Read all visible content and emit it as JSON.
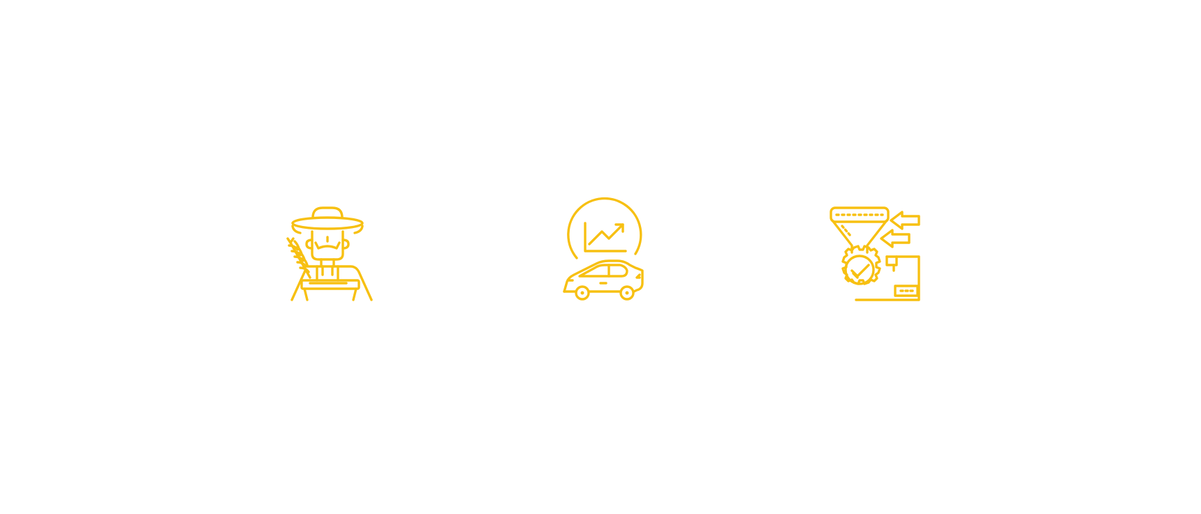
{
  "theme": {
    "background": "#ffffff",
    "icon_color": "#F7C012"
  },
  "icons": [
    {
      "name": "farmer-with-wheat-icon"
    },
    {
      "name": "car-sales-growth-icon"
    },
    {
      "name": "production-process-icon"
    }
  ]
}
